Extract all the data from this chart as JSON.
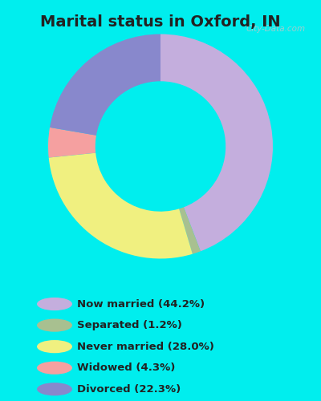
{
  "title": "Marital status in Oxford, IN",
  "title_fontsize": 14,
  "background_color": "#00EEEE",
  "chart_bg_color_center": "#e8f5ee",
  "chart_bg_color_edge": "#c8e8d8",
  "watermark": "City-Data.com",
  "slices": [
    44.2,
    1.2,
    28.0,
    4.3,
    22.3
  ],
  "labels": [
    "Now married (44.2%)",
    "Separated (1.2%)",
    "Never married (28.0%)",
    "Widowed (4.3%)",
    "Divorced (22.3%)"
  ],
  "colors": [
    "#c4aedd",
    "#a8c090",
    "#f0f080",
    "#f5a0a0",
    "#8888cc"
  ],
  "start_angle": 90,
  "donut_width": 0.42
}
